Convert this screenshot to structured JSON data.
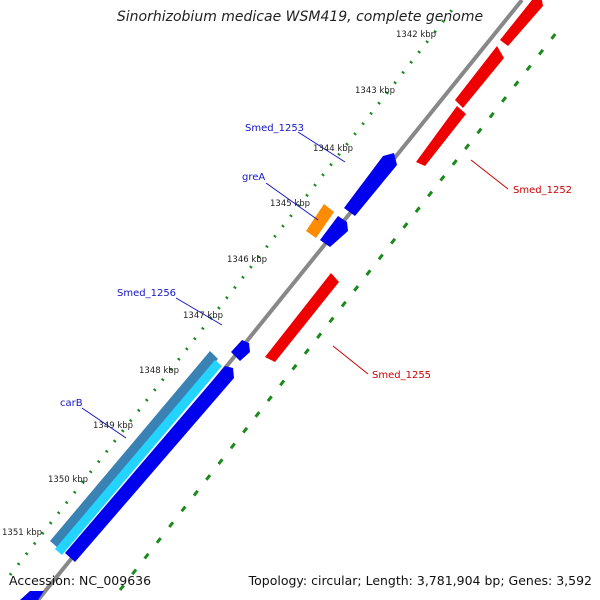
{
  "title": "Sinorhizobium medicae WSM419, complete genome",
  "footer": {
    "accession": "Accession: NC_009636",
    "summary": "Topology: circular; Length: 3,781,904 bp; Genes: 3,592"
  },
  "ruler": {
    "ticks": [
      "1342 kbp",
      "1343 kbp",
      "1344 kbp",
      "1345 kbp",
      "1346 kbp",
      "1347 kbp",
      "1348 kbp",
      "1349 kbp",
      "1350 kbp",
      "1351 kbp"
    ]
  },
  "genes": {
    "forward": [
      "Smed_1253",
      "greA",
      "Smed_1256",
      "carB"
    ],
    "reverse": [
      "Smed_1252",
      "Smed_1255"
    ]
  },
  "colors": {
    "forward_cds": "#0000ee",
    "reverse_cds": "#ee0000",
    "rna": "#ff8c00",
    "feature_teal": "#3a82b4",
    "feature_cyan": "#22d4ff",
    "backbone": "#888888",
    "ticks": "#1a8a1a",
    "gene_label_forward": "#1414c8",
    "gene_label_reverse": "#cc0000"
  }
}
